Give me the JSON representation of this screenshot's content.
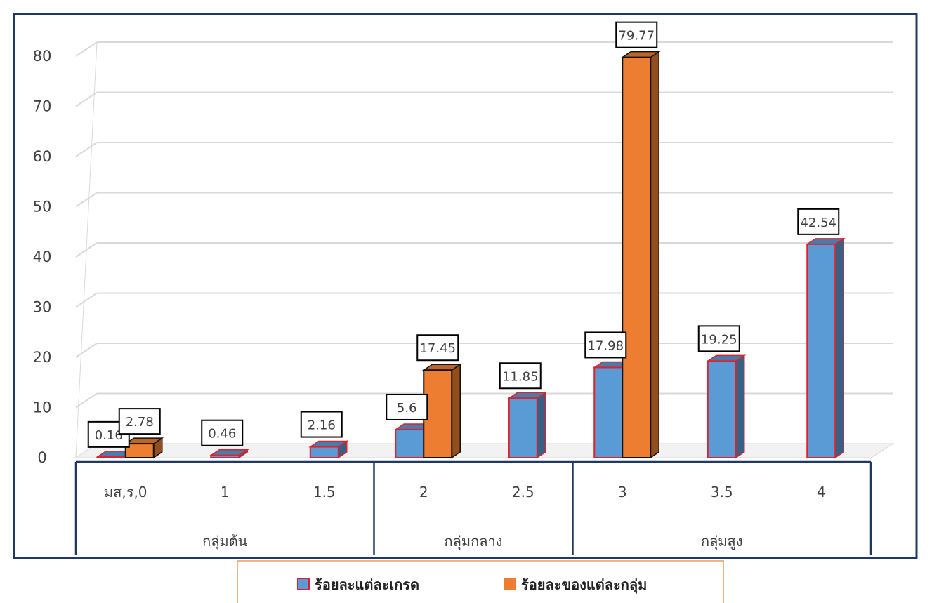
{
  "chart_data": {
    "type": "bar",
    "categories": [
      "มส,ร,0",
      "1",
      "1.5",
      "2",
      "2.5",
      "3",
      "3.5",
      "4"
    ],
    "groups": [
      {
        "label": "กลุ่มต้น",
        "categories": [
          "มส,ร,0",
          "1",
          "1.5"
        ]
      },
      {
        "label": "กลุ่มกลาง",
        "categories": [
          "2",
          "2.5"
        ]
      },
      {
        "label": "กลุ่มสูง",
        "categories": [
          "3",
          "3.5",
          "4"
        ]
      }
    ],
    "series": [
      {
        "name": "ร้อยละแต่ละเกรด",
        "color": "#5b9bd5",
        "values": [
          0.16,
          0.46,
          2.16,
          5.6,
          11.85,
          17.98,
          19.25,
          42.54
        ]
      },
      {
        "name": "ร้อยละของแต่ละกลุ่ม",
        "color": "#ed7d31",
        "values": [
          2.78,
          null,
          null,
          17.45,
          null,
          79.77,
          null,
          null
        ]
      }
    ],
    "data_labels": {
      "ร้อยละแต่ละเกรด": [
        "0.16",
        "0.46",
        "2.16",
        "5.6",
        "11.85",
        "17.98",
        "19.25",
        "42.54"
      ],
      "ร้อยละของแต่ละกลุ่ม": [
        "2.78",
        null,
        null,
        "17.45",
        null,
        "79.77",
        null,
        null
      ]
    },
    "yticks": [
      "0",
      "10",
      "20",
      "30",
      "40",
      "50",
      "60",
      "70",
      "80"
    ],
    "ylim": [
      0,
      80
    ],
    "grid": true,
    "legend_position": "bottom",
    "title": "",
    "xlabel": "",
    "ylabel": ""
  }
}
